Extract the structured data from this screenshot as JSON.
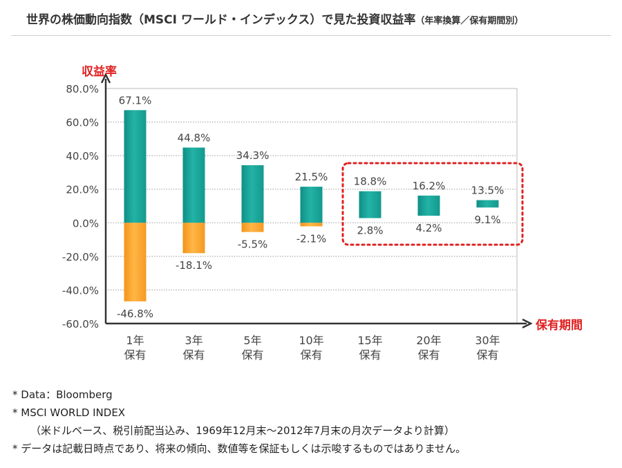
{
  "title": "世界の株価動向指数（MSCI ワールド・インデックス）で見た投資収益率",
  "subtitle": "（年率換算／保有期間別）",
  "chart_data": {
    "type": "bar",
    "ylabel": "収益率",
    "xlabel": "保有期間",
    "ylim": [
      -60,
      80
    ],
    "y_ticks": [
      "80.0%",
      "60.0%",
      "40.0%",
      "20.0%",
      "0.0%",
      "-20.0%",
      "-40.0%",
      "-60.0%"
    ],
    "y_tick_values": [
      80,
      60,
      40,
      20,
      0,
      -20,
      -40,
      -60
    ],
    "grid": true,
    "categories": [
      {
        "line1": "1年",
        "line2": "保有"
      },
      {
        "line1": "3年",
        "line2": "保有"
      },
      {
        "line1": "5年",
        "line2": "保有"
      },
      {
        "line1": "10年",
        "line2": "保有"
      },
      {
        "line1": "15年",
        "line2": "保有"
      },
      {
        "line1": "20年",
        "line2": "保有"
      },
      {
        "line1": "30年",
        "line2": "保有"
      }
    ],
    "max": [
      67.1,
      44.8,
      34.3,
      21.5,
      18.8,
      16.2,
      13.5
    ],
    "min": [
      -46.8,
      -18.1,
      -5.5,
      -2.1,
      2.8,
      4.2,
      9.1
    ],
    "max_labels": [
      "67.1%",
      "44.8%",
      "34.3%",
      "21.5%",
      "18.8%",
      "16.2%",
      "13.5%"
    ],
    "min_labels": [
      "-46.8%",
      "-18.1%",
      "-5.5%",
      "-2.1%",
      "2.8%",
      "4.2%",
      "9.1%"
    ],
    "colors": {
      "positive": "#1aa69a",
      "negative": "#f7a12c",
      "axis_label": "#e02020",
      "highlight": "#e02020"
    },
    "highlight_categories": [
      4,
      5,
      6
    ]
  },
  "notes": {
    "line1": "* Data：Bloomberg",
    "line2": "* MSCI WORLD INDEX",
    "line3": "（米ドルベース、税引前配当込み、1969年12月末～2012年7月末の月次データより計算）",
    "line4": "* データは記載日時点であり、将来の傾向、数値等を保証もしくは示唆するものではありません。"
  }
}
